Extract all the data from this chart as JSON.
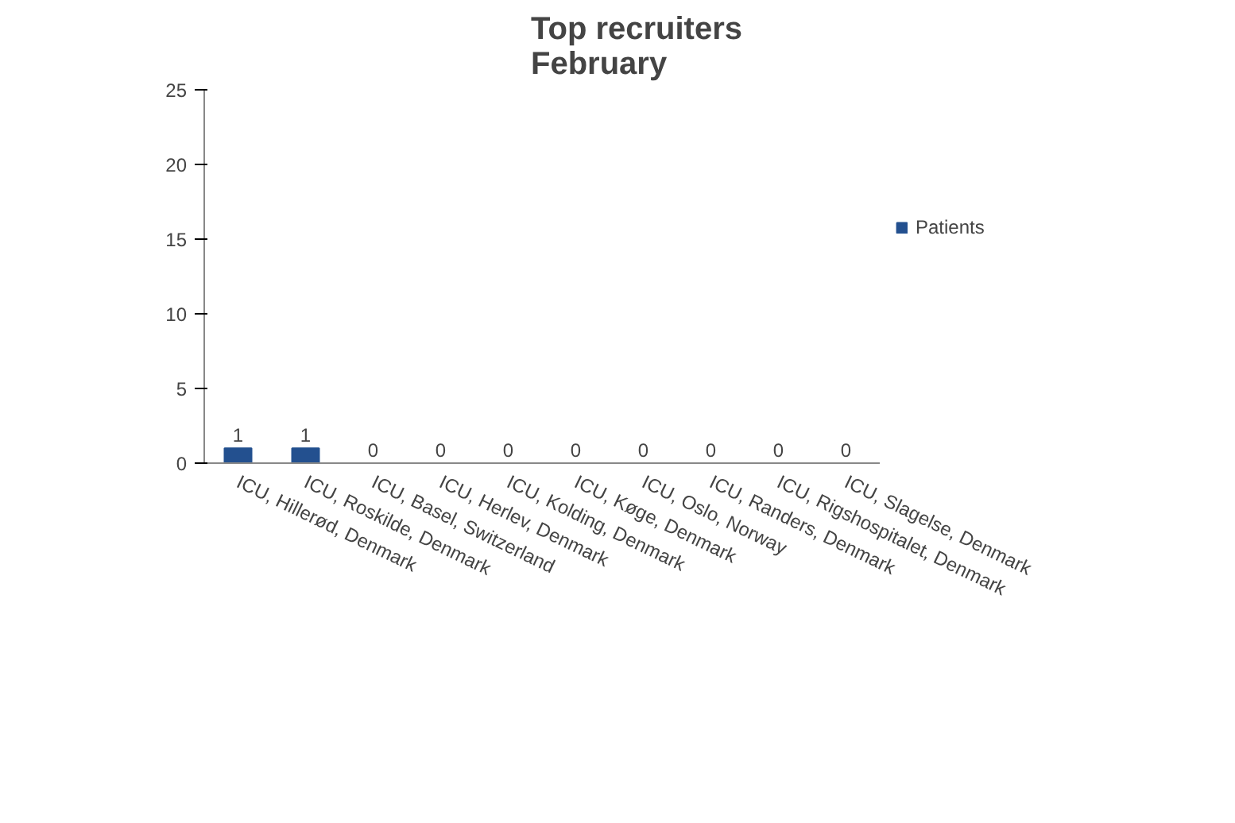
{
  "chart_data": {
    "type": "bar",
    "title": "Top recruiters\nFebruary",
    "categories": [
      "ICU, Hillerød, Denmark",
      "ICU, Roskilde, Denmark",
      "ICU, Basel, Switzerland",
      "ICU, Herlev, Denmark",
      "ICU, Kolding, Denmark",
      "ICU, Køge, Denmark",
      "ICU, Oslo, Norway",
      "ICU, Randers, Denmark",
      "ICU, Rigshospitalet, Denmark",
      "ICU, Slagelse, Denmark"
    ],
    "series": [
      {
        "name": "Patients",
        "color": "#23508f",
        "values": [
          1,
          1,
          0,
          0,
          0,
          0,
          0,
          0,
          0,
          0
        ]
      }
    ],
    "ylim": [
      0,
      25
    ],
    "yticks": [
      0,
      5,
      10,
      15,
      20,
      25
    ],
    "grid": false,
    "legend": "right",
    "data_labels": true
  }
}
